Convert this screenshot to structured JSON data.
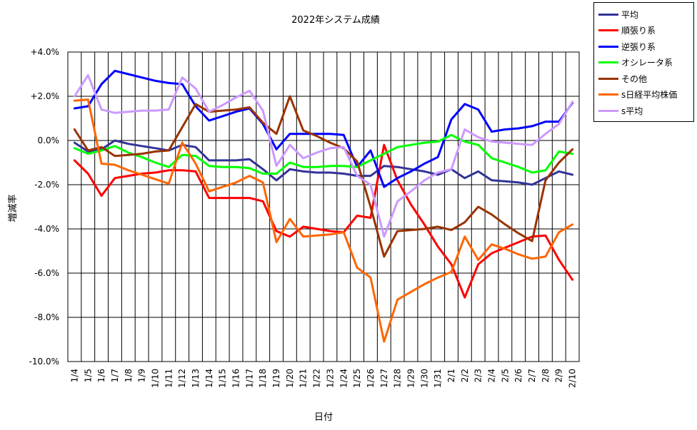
{
  "chart_data": {
    "type": "line",
    "title": "2022年システム成績",
    "xlabel": "日付",
    "ylabel": "増減率",
    "categories": [
      "1/4",
      "1/5",
      "1/6",
      "1/7",
      "1/8",
      "1/9",
      "1/10",
      "1/11",
      "1/12",
      "1/13",
      "1/14",
      "1/15",
      "1/16",
      "1/17",
      "1/18",
      "1/19",
      "1/20",
      "1/21",
      "1/22",
      "1/23",
      "1/24",
      "1/25",
      "1/26",
      "1/27",
      "1/28",
      "1/29",
      "1/30",
      "1/31",
      "2/1",
      "2/2",
      "2/3",
      "2/4",
      "2/5",
      "2/6",
      "2/7",
      "2/8",
      "2/9",
      "2/10"
    ],
    "yticks": [
      "+4.0%",
      "+2.0%",
      "0.0%",
      "-2.0%",
      "-4.0%",
      "-6.0%",
      "-8.0%",
      "-10.0%"
    ],
    "ylim": [
      -10,
      4
    ],
    "grid": true,
    "legend_position": "top-right",
    "series": [
      {
        "name": "平均",
        "color": "#333399",
        "values": [
          -0.1,
          -0.5,
          -0.4,
          0.0,
          -0.15,
          -0.25,
          -0.35,
          -0.45,
          -0.2,
          -0.3,
          -0.9,
          -0.9,
          -0.9,
          -0.85,
          -1.3,
          -1.8,
          -1.3,
          -1.4,
          -1.45,
          -1.45,
          -1.5,
          -1.6,
          -1.6,
          -1.15,
          -1.2,
          -1.3,
          -1.4,
          -1.55,
          -1.3,
          -1.7,
          -1.4,
          -1.8,
          -1.85,
          -1.9,
          -2.0,
          -1.7,
          -1.4,
          -1.55
        ]
      },
      {
        "name": "順張り系",
        "color": "#ff0000",
        "values": [
          -0.9,
          -1.5,
          -2.5,
          -1.7,
          -1.6,
          -1.5,
          -1.45,
          -1.35,
          -1.35,
          -1.4,
          -2.6,
          -2.6,
          -2.6,
          -2.6,
          -2.75,
          -4.1,
          -4.35,
          -3.9,
          -4.0,
          -4.1,
          -4.15,
          -3.4,
          -3.5,
          -0.2,
          -1.8,
          -2.9,
          -3.8,
          -4.8,
          -5.6,
          -7.1,
          -5.6,
          -5.1,
          -4.85,
          -4.6,
          -4.35,
          -4.3,
          -5.4,
          -6.3
        ]
      },
      {
        "name": "逆張り系",
        "color": "#0000ff",
        "values": [
          1.45,
          1.55,
          2.55,
          3.15,
          3.0,
          2.85,
          2.7,
          2.6,
          2.55,
          1.55,
          0.9,
          1.1,
          1.3,
          1.45,
          0.75,
          -0.4,
          0.3,
          0.3,
          0.3,
          0.3,
          0.25,
          -1.2,
          -0.45,
          -2.1,
          -1.7,
          -1.4,
          -1.05,
          -0.75,
          0.95,
          1.65,
          1.4,
          0.4,
          0.5,
          0.55,
          0.65,
          0.85,
          0.85,
          1.7
        ]
      },
      {
        "name": "オシレータ系",
        "color": "#00ff00",
        "values": [
          -0.35,
          -0.6,
          -0.45,
          -0.25,
          -0.55,
          -0.75,
          -1.0,
          -1.2,
          -0.65,
          -0.7,
          -1.15,
          -1.2,
          -1.2,
          -1.25,
          -1.5,
          -1.5,
          -1.0,
          -1.2,
          -1.2,
          -1.15,
          -1.15,
          -1.2,
          -0.9,
          -0.6,
          -0.3,
          -0.2,
          -0.1,
          -0.05,
          0.25,
          -0.05,
          -0.2,
          -0.8,
          -1.0,
          -1.2,
          -1.45,
          -1.35,
          -0.5,
          -0.6
        ]
      },
      {
        "name": "その他",
        "color": "#993300",
        "values": [
          0.5,
          -0.45,
          -0.3,
          -0.7,
          -0.65,
          -0.6,
          -0.5,
          -0.45,
          0.6,
          1.65,
          1.3,
          1.35,
          1.4,
          1.5,
          0.8,
          0.3,
          2.0,
          0.45,
          0.2,
          -0.1,
          -0.35,
          -0.95,
          -3.0,
          -5.25,
          -4.1,
          -4.05,
          -4.0,
          -3.9,
          -4.05,
          -3.7,
          -3.0,
          -3.35,
          -3.8,
          -4.2,
          -4.55,
          -1.8,
          -1.0,
          -0.4
        ]
      },
      {
        "name": "s日経平均株価",
        "color": "#ff6600",
        "values": [
          1.8,
          1.85,
          -1.05,
          -1.1,
          -1.35,
          -1.55,
          -1.75,
          -1.95,
          -0.1,
          -1.05,
          -2.3,
          -2.1,
          -1.9,
          -1.6,
          -1.9,
          -4.6,
          -3.55,
          -4.35,
          -4.3,
          -4.25,
          -4.15,
          -5.75,
          -6.2,
          -9.1,
          -7.2,
          -6.85,
          -6.5,
          -6.2,
          -5.95,
          -4.35,
          -5.4,
          -4.7,
          -4.9,
          -5.15,
          -5.35,
          -5.25,
          -4.15,
          -3.8
        ]
      },
      {
        "name": "s平均",
        "color": "#cc99ff",
        "values": [
          2.0,
          2.95,
          1.4,
          1.25,
          1.3,
          1.35,
          1.35,
          1.4,
          2.85,
          2.35,
          1.3,
          1.6,
          1.95,
          2.25,
          1.35,
          -1.15,
          -0.2,
          -0.8,
          -0.55,
          -0.35,
          -0.3,
          -1.6,
          -2.0,
          -4.35,
          -2.75,
          -2.3,
          -1.8,
          -1.45,
          -1.3,
          0.5,
          0.15,
          -0.05,
          -0.1,
          -0.15,
          -0.2,
          0.3,
          0.75,
          1.75
        ]
      }
    ]
  }
}
